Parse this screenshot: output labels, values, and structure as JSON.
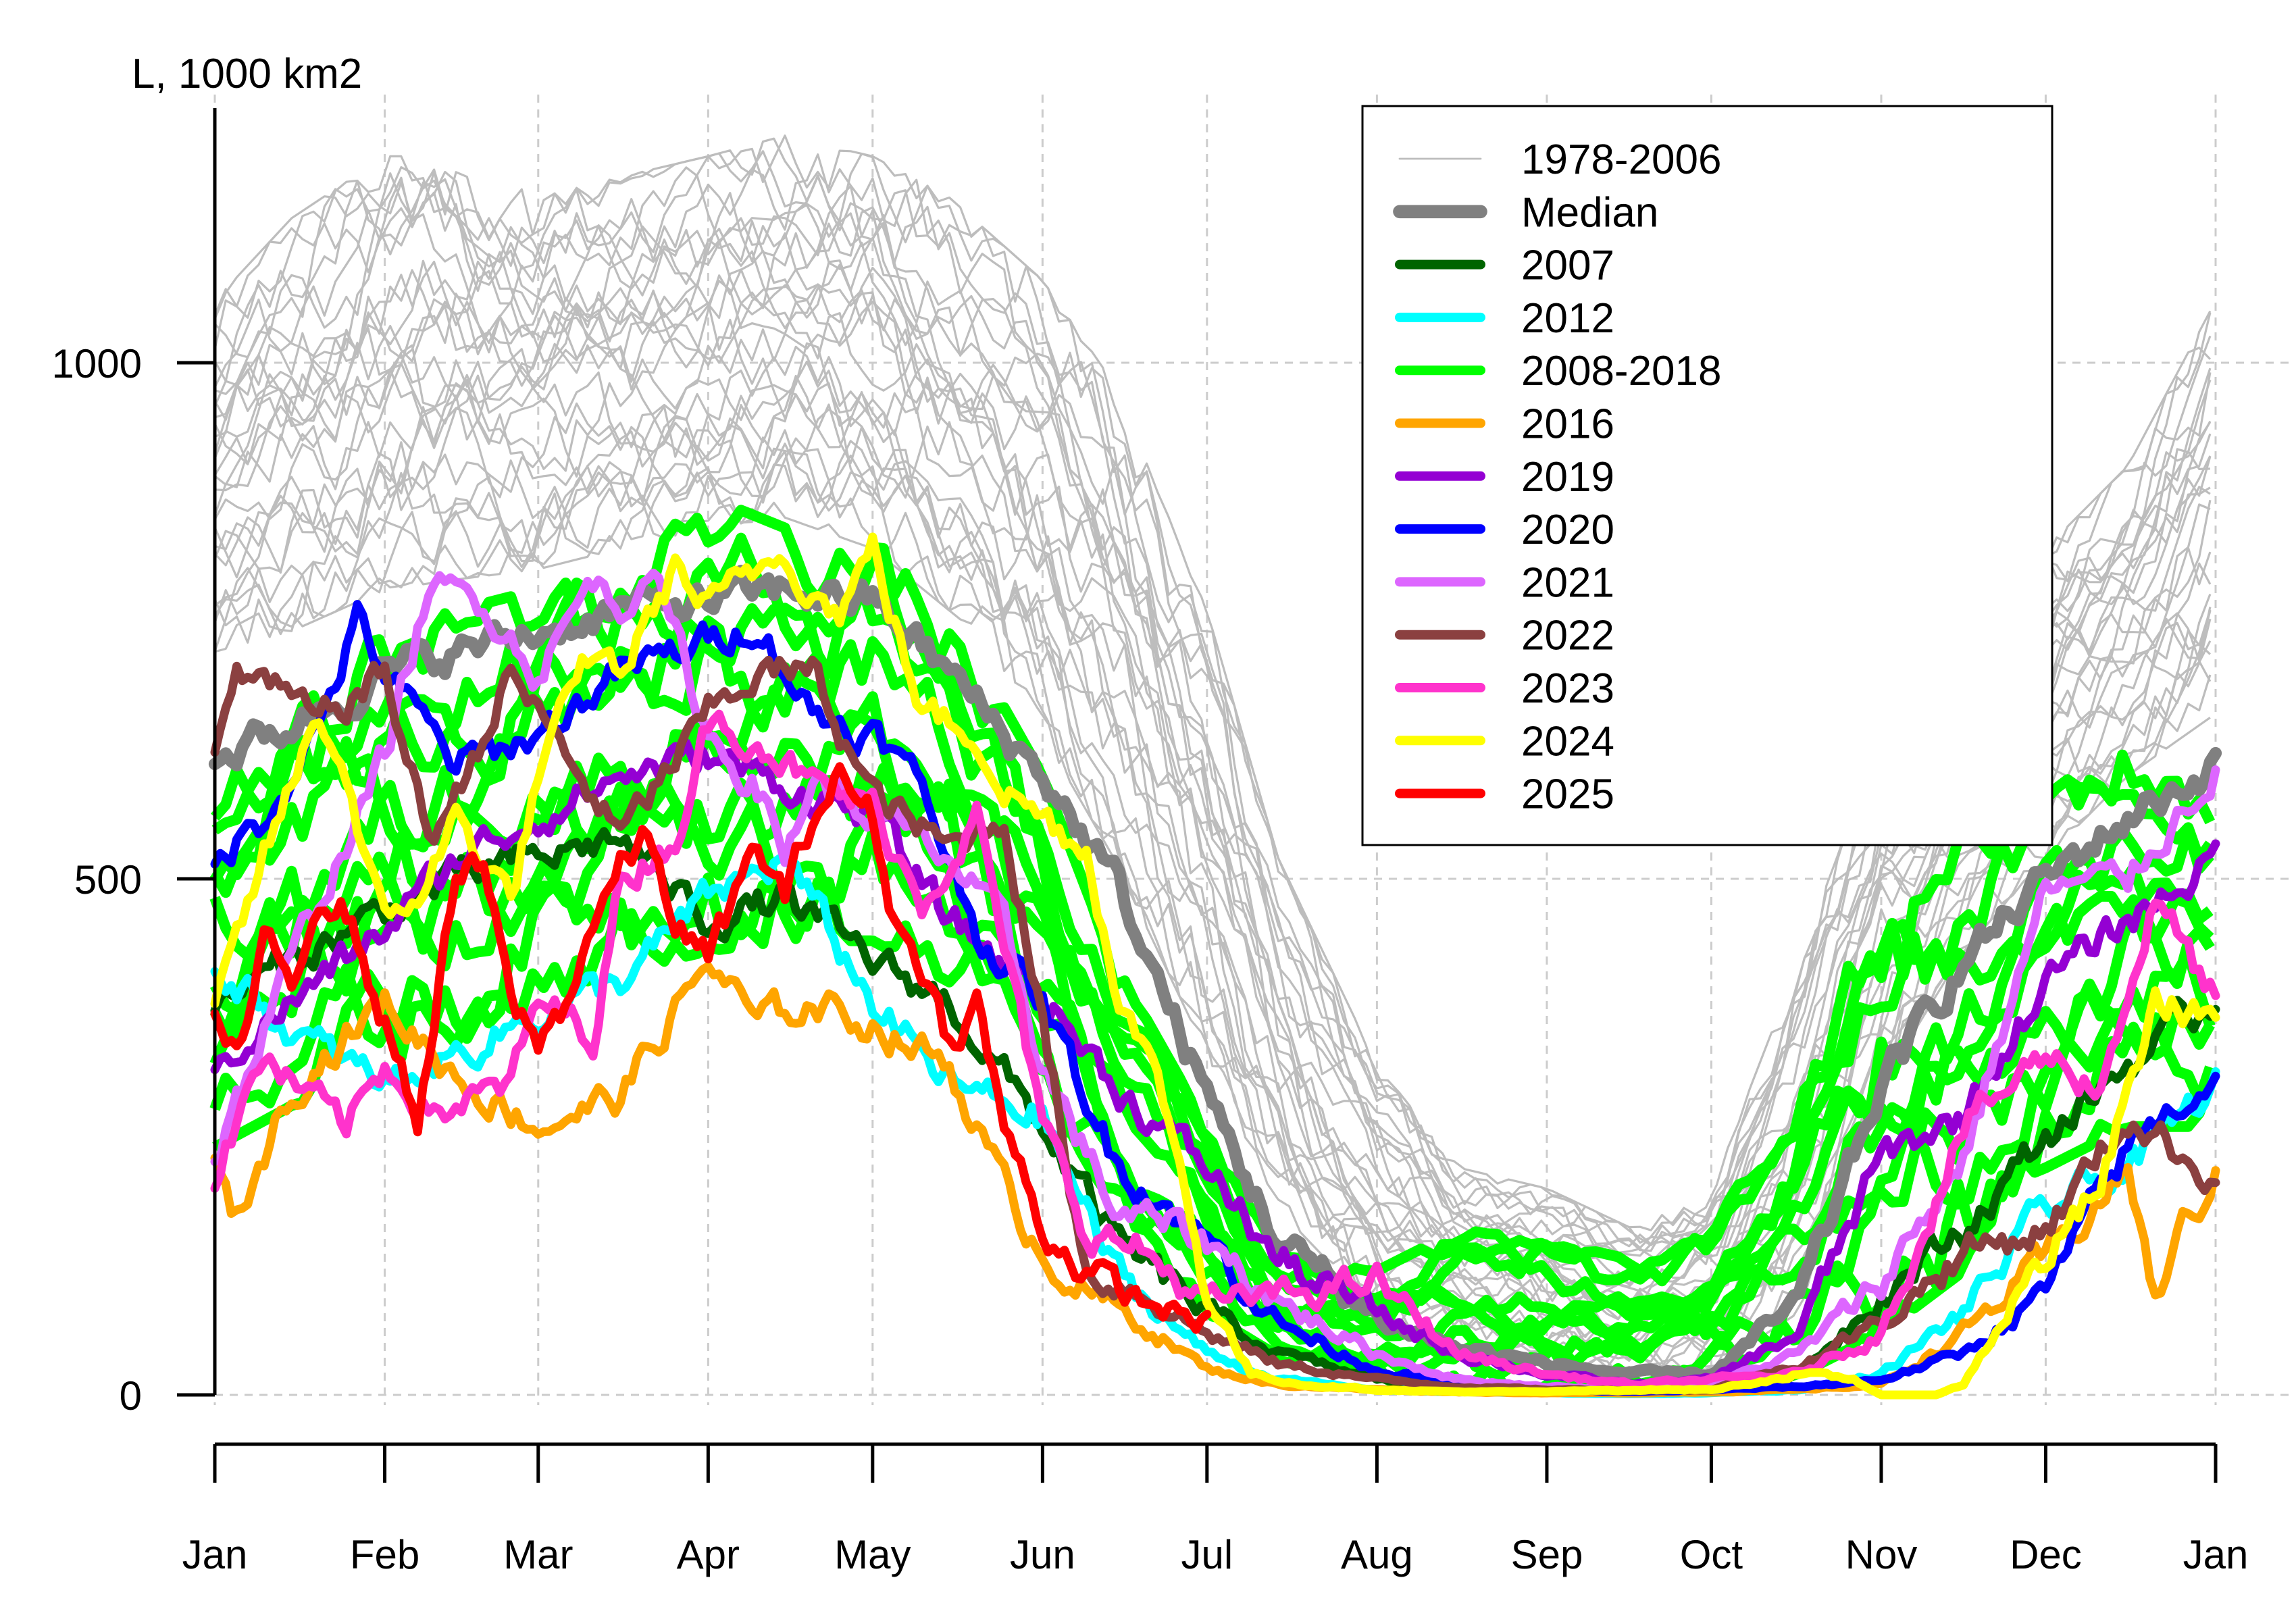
{
  "chart_data": {
    "type": "line",
    "ylabel": "L, 1000 km2",
    "xlabel": "",
    "title": "",
    "ylim": [
      -40,
      1250
    ],
    "yticks": [
      0,
      500,
      1000
    ],
    "x_unit": "day of year",
    "xlim": [
      1,
      366
    ],
    "xticks": [
      {
        "label": "Jan",
        "day": 1
      },
      {
        "label": "Feb",
        "day": 32
      },
      {
        "label": "Mar",
        "day": 60
      },
      {
        "label": "Apr",
        "day": 91
      },
      {
        "label": "May",
        "day": 121
      },
      {
        "label": "Jun",
        "day": 152
      },
      {
        "label": "Jul",
        "day": 182
      },
      {
        "label": "Aug",
        "day": 213
      },
      {
        "label": "Sep",
        "day": 244
      },
      {
        "label": "Oct",
        "day": 274
      },
      {
        "label": "Nov",
        "day": 305
      },
      {
        "label": "Dec",
        "day": 335
      },
      {
        "label": "Jan",
        "day": 366
      }
    ],
    "grid": true,
    "legend_position": "top-right",
    "legend": [
      {
        "label": "1978-2006",
        "color": "#bdbdbd",
        "width": 2
      },
      {
        "label": "Median",
        "color": "#808080",
        "width": 14
      },
      {
        "label": "2007",
        "color": "#006400",
        "width": 10
      },
      {
        "label": "2012",
        "color": "#00ffff",
        "width": 10
      },
      {
        "label": "2008-2018",
        "color": "#00ff00",
        "width": 10
      },
      {
        "label": "2016",
        "color": "#ffa500",
        "width": 10
      },
      {
        "label": "2019",
        "color": "#9400d3",
        "width": 10
      },
      {
        "label": "2020",
        "color": "#0000ff",
        "width": 10
      },
      {
        "label": "2021",
        "color": "#dd66ff",
        "width": 10
      },
      {
        "label": "2022",
        "color": "#8b4040",
        "width": 10
      },
      {
        "label": "2023",
        "color": "#ff33cc",
        "width": 10
      },
      {
        "label": "2024",
        "color": "#ffff00",
        "width": 10
      },
      {
        "label": "2025",
        "color": "#ff0000",
        "width": 10
      }
    ],
    "series": [
      {
        "name": "Median",
        "color": "#808080",
        "width": 14,
        "x": [
          1,
          15,
          32,
          45,
          60,
          75,
          91,
          105,
          121,
          135,
          152,
          165,
          182,
          195,
          213,
          228,
          244,
          260,
          274,
          290,
          305,
          320,
          335,
          350,
          366
        ],
        "y": [
          615,
          650,
          700,
          720,
          740,
          760,
          770,
          780,
          770,
          700,
          600,
          500,
          290,
          150,
          75,
          45,
          30,
          20,
          20,
          90,
          300,
          420,
          500,
          560,
          610
        ]
      },
      {
        "name": "2007",
        "color": "#006400",
        "width": 10,
        "x": [
          1,
          15,
          32,
          45,
          60,
          75,
          91,
          105,
          121,
          135,
          152,
          165,
          182,
          195,
          213,
          228,
          244,
          260,
          274,
          290,
          305,
          320,
          335,
          350,
          366
        ],
        "y": [
          380,
          420,
          470,
          500,
          520,
          540,
          460,
          480,
          420,
          380,
          260,
          150,
          80,
          40,
          15,
          8,
          5,
          3,
          5,
          20,
          100,
          160,
          250,
          320,
          380
        ]
      },
      {
        "name": "2012",
        "color": "#00ffff",
        "width": 10,
        "x": [
          1,
          15,
          32,
          45,
          60,
          75,
          91,
          105,
          121,
          135,
          152,
          165,
          182,
          195,
          213,
          228,
          244,
          260,
          274,
          290,
          305,
          320,
          335,
          350,
          366
        ],
        "y": [
          420,
          350,
          300,
          330,
          370,
          400,
          480,
          520,
          380,
          300,
          270,
          120,
          40,
          15,
          5,
          3,
          2,
          1,
          2,
          5,
          20,
          80,
          180,
          220,
          300
        ]
      },
      {
        "name": "2016",
        "color": "#ffa500",
        "width": 10,
        "x": [
          1,
          5,
          15,
          32,
          45,
          60,
          75,
          91,
          100,
          110,
          121,
          135,
          145,
          152,
          160,
          170,
          182,
          195,
          213,
          228,
          244,
          260,
          274,
          290,
          305,
          320,
          335,
          350,
          355,
          360,
          366
        ],
        "y": [
          220,
          170,
          300,
          380,
          310,
          260,
          290,
          420,
          360,
          380,
          360,
          320,
          200,
          140,
          100,
          70,
          25,
          10,
          5,
          3,
          2,
          2,
          3,
          5,
          10,
          60,
          130,
          220,
          90,
          160,
          210
        ]
      },
      {
        "name": "2019",
        "color": "#9400d3",
        "width": 10,
        "x": [
          1,
          15,
          32,
          45,
          60,
          75,
          91,
          105,
          121,
          135,
          152,
          165,
          182,
          195,
          213,
          228,
          244,
          260,
          274,
          290,
          305,
          320,
          335,
          350,
          366
        ],
        "y": [
          320,
          380,
          450,
          520,
          560,
          600,
          620,
          590,
          560,
          460,
          390,
          300,
          220,
          130,
          80,
          40,
          20,
          10,
          15,
          60,
          230,
          270,
          400,
          460,
          520
        ]
      },
      {
        "name": "2020",
        "color": "#0000ff",
        "width": 10,
        "x": [
          1,
          10,
          20,
          27,
          32,
          45,
          60,
          75,
          91,
          100,
          110,
          121,
          130,
          140,
          152,
          165,
          182,
          195,
          213,
          228,
          244,
          260,
          274,
          290,
          305,
          320,
          335,
          350,
          366
        ],
        "y": [
          520,
          560,
          650,
          750,
          700,
          610,
          640,
          700,
          730,
          750,
          660,
          640,
          590,
          450,
          380,
          230,
          150,
          70,
          25,
          10,
          5,
          3,
          5,
          8,
          15,
          40,
          100,
          240,
          310
        ]
      },
      {
        "name": "2021",
        "color": "#dd66ff",
        "width": 10,
        "x": [
          1,
          15,
          32,
          40,
          50,
          60,
          70,
          75,
          80,
          91,
          100,
          105,
          110,
          121,
          135,
          145,
          152,
          165,
          182,
          195,
          213,
          228,
          244,
          260,
          274,
          290,
          305,
          320,
          335,
          350,
          366
        ],
        "y": [
          230,
          420,
          620,
          780,
          770,
          700,
          790,
          760,
          810,
          640,
          590,
          520,
          600,
          560,
          520,
          450,
          320,
          180,
          150,
          90,
          40,
          15,
          8,
          5,
          10,
          40,
          110,
          230,
          490,
          500,
          610
        ]
      },
      {
        "name": "2022",
        "color": "#8b4040",
        "width": 10,
        "x": [
          1,
          5,
          10,
          20,
          32,
          40,
          45,
          55,
          60,
          75,
          91,
          100,
          110,
          121,
          135,
          145,
          152,
          160,
          170,
          182,
          195,
          213,
          228,
          244,
          260,
          274,
          290,
          305,
          320,
          335,
          350,
          366
        ],
        "y": [
          610,
          700,
          690,
          650,
          700,
          540,
          580,
          700,
          660,
          540,
          660,
          700,
          700,
          580,
          530,
          560,
          360,
          120,
          100,
          60,
          30,
          15,
          8,
          5,
          5,
          5,
          30,
          70,
          140,
          160,
          270,
          210
        ]
      },
      {
        "name": "2023",
        "color": "#ff33cc",
        "width": 10,
        "x": [
          1,
          10,
          15,
          25,
          32,
          40,
          45,
          55,
          60,
          70,
          75,
          85,
          91,
          100,
          110,
          121,
          130,
          140,
          152,
          160,
          170,
          182,
          195,
          213,
          228,
          244,
          260,
          274,
          290,
          305,
          320,
          335,
          345,
          355,
          366
        ],
        "y": [
          210,
          330,
          300,
          260,
          320,
          280,
          280,
          300,
          380,
          350,
          500,
          540,
          650,
          640,
          590,
          570,
          480,
          560,
          260,
          160,
          140,
          90,
          95,
          110,
          40,
          20,
          10,
          15,
          20,
          60,
          260,
          330,
          300,
          480,
          380
        ]
      },
      {
        "name": "2024",
        "color": "#ffff00",
        "width": 10,
        "x": [
          1,
          10,
          20,
          25,
          32,
          40,
          45,
          55,
          60,
          70,
          75,
          85,
          91,
          100,
          105,
          110,
          115,
          121,
          130,
          140,
          145,
          152,
          160,
          165,
          175,
          182,
          190,
          200,
          213,
          228,
          244,
          260,
          274,
          290,
          300,
          305,
          315,
          320,
          330,
          345,
          355,
          366
        ],
        "y": [
          370,
          520,
          660,
          600,
          450,
          500,
          560,
          480,
          600,
          720,
          700,
          800,
          760,
          800,
          820,
          780,
          760,
          820,
          660,
          640,
          590,
          560,
          530,
          410,
          270,
          100,
          20,
          10,
          5,
          3,
          3,
          5,
          5,
          20,
          15,
          0,
          0,
          10,
          100,
          200,
          380,
          370
        ]
      },
      {
        "name": "2025",
        "color": "#ff0000",
        "width": 10,
        "x": [
          1,
          5,
          10,
          15,
          20,
          25,
          32,
          38,
          40,
          45,
          50,
          55,
          60,
          65,
          70,
          75,
          80,
          85,
          91,
          95,
          100,
          105,
          110,
          115,
          121,
          125,
          130,
          135,
          140,
          145,
          152,
          160,
          170,
          182
        ],
        "y": [
          360,
          320,
          430,
          400,
          490,
          470,
          360,
          270,
          330,
          500,
          510,
          380,
          340,
          380,
          460,
          510,
          540,
          460,
          420,
          470,
          530,
          480,
          560,
          600,
          560,
          460,
          420,
          340,
          380,
          260,
          160,
          120,
          90,
          70
        ]
      }
    ],
    "bundles": [
      {
        "name": "1978-2006",
        "color": "#bdbdbd",
        "width": 2,
        "count": 29,
        "x": [
          1,
          15,
          32,
          45,
          60,
          75,
          91,
          105,
          121,
          135,
          152,
          165,
          182,
          195,
          213,
          228,
          244,
          260,
          274,
          290,
          305,
          320,
          335,
          350,
          366
        ],
        "y_low": [
          720,
          740,
          780,
          790,
          800,
          820,
          840,
          850,
          820,
          760,
          640,
          520,
          330,
          180,
          80,
          40,
          25,
          20,
          25,
          80,
          300,
          430,
          520,
          600,
          660
        ],
        "y_high": [
          1060,
          1140,
          1200,
          1200,
          1160,
          1180,
          1200,
          1220,
          1200,
          1160,
          1080,
          980,
          760,
          520,
          320,
          220,
          200,
          160,
          200,
          420,
          640,
          720,
          820,
          900,
          1060
        ]
      },
      {
        "name": "2008-2018",
        "color": "#00ff00",
        "width": 10,
        "count": 10,
        "x": [
          1,
          15,
          32,
          45,
          60,
          75,
          91,
          105,
          121,
          135,
          152,
          165,
          182,
          195,
          213,
          228,
          244,
          260,
          274,
          290,
          305,
          320,
          335,
          350,
          366
        ],
        "y_low": [
          240,
          280,
          310,
          340,
          380,
          410,
          430,
          440,
          440,
          400,
          300,
          180,
          80,
          30,
          10,
          5,
          3,
          3,
          5,
          20,
          60,
          120,
          220,
          260,
          260
        ],
        "y_high": [
          600,
          680,
          740,
          760,
          780,
          800,
          870,
          840,
          830,
          760,
          600,
          420,
          260,
          140,
          120,
          160,
          150,
          130,
          160,
          300,
          500,
          540,
          580,
          640,
          610
        ]
      }
    ]
  }
}
